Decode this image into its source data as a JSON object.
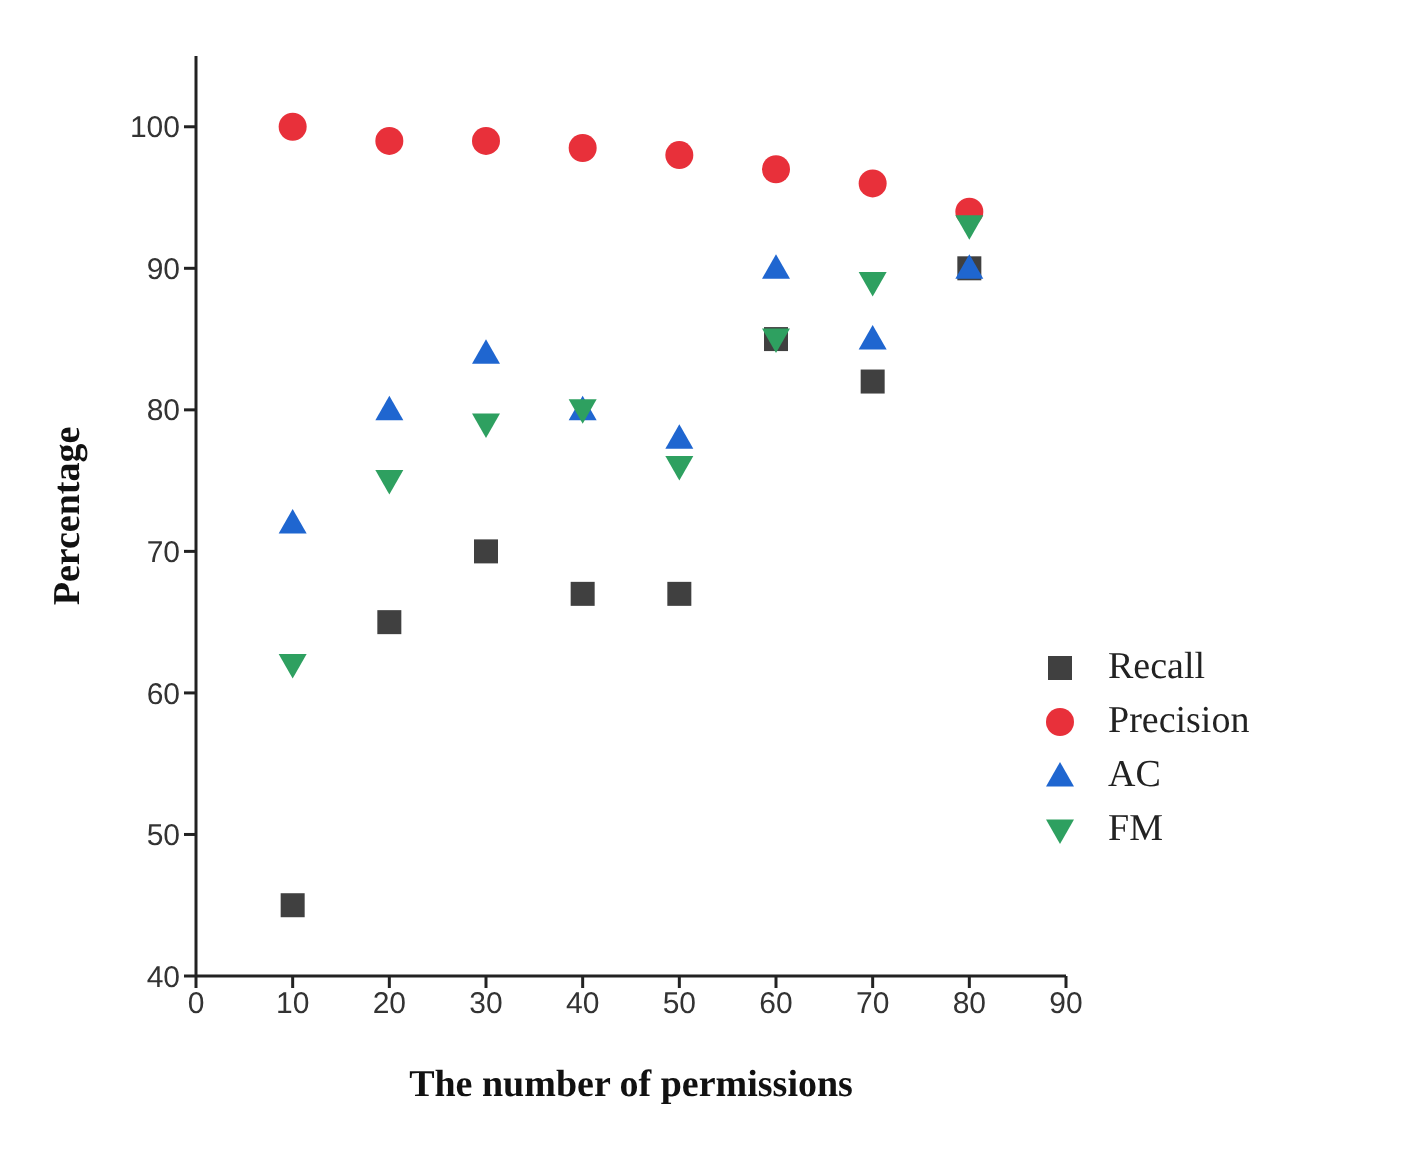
{
  "chart_data": {
    "type": "scatter",
    "xlabel": "The number of permissions",
    "ylabel": "Percentage",
    "x": [
      10,
      20,
      30,
      40,
      50,
      60,
      70,
      80
    ],
    "series": [
      {
        "name": "Recall",
        "color": "#404040",
        "marker": "square",
        "values": [
          45,
          65,
          70,
          67,
          67,
          85,
          82,
          90
        ]
      },
      {
        "name": "Precision",
        "color": "#e8303a",
        "marker": "circle",
        "values": [
          100,
          99,
          99,
          98.5,
          98,
          97,
          96,
          94
        ]
      },
      {
        "name": "AC",
        "color": "#1f66d0",
        "marker": "triangle",
        "values": [
          72,
          80,
          84,
          80,
          78,
          90,
          85,
          90
        ]
      },
      {
        "name": "FM",
        "color": "#2ea060",
        "marker": "triangle-down",
        "values": [
          62,
          75,
          79,
          80,
          76,
          85,
          89,
          93
        ]
      }
    ],
    "xlim": [
      0,
      90
    ],
    "xticks": [
      0,
      10,
      20,
      30,
      40,
      50,
      60,
      70,
      80,
      90
    ],
    "ylim": [
      40,
      105
    ],
    "yticks": [
      40,
      50,
      60,
      70,
      80,
      90,
      100
    ],
    "grid": false,
    "legend": "bottom right"
  }
}
